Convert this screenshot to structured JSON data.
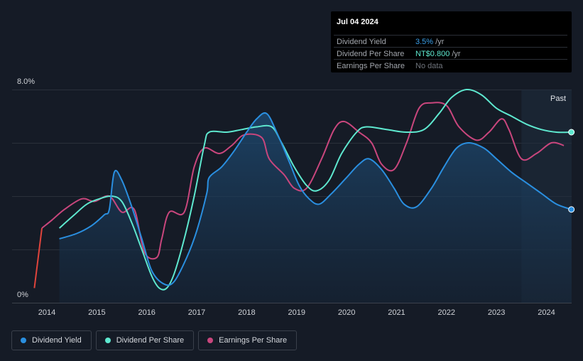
{
  "tooltip": {
    "date": "Jul 04 2024",
    "rows": [
      {
        "label": "Dividend Yield",
        "value": "3.5%",
        "unit": " /yr",
        "color": "#3a9fe8"
      },
      {
        "label": "Dividend Per Share",
        "value": "NT$0.800",
        "unit": " /yr",
        "color": "#5ee8cf"
      },
      {
        "label": "Earnings Per Share",
        "value": "No data",
        "unit": "",
        "color": "#6f747c"
      }
    ]
  },
  "legend": [
    {
      "label": "Dividend Yield",
      "color": "#2a8fe0"
    },
    {
      "label": "Dividend Per Share",
      "color": "#5ee8cf"
    },
    {
      "label": "Earnings Per Share",
      "color": "#c9467d"
    }
  ],
  "chart_data": {
    "type": "line",
    "y_top_label": "8.0%",
    "y_bottom_label": "0%",
    "ylim": [
      0,
      8
    ],
    "xlim": [
      2013.6,
      2024.5
    ],
    "x_ticks": [
      "2014",
      "2015",
      "2016",
      "2017",
      "2018",
      "2019",
      "2020",
      "2021",
      "2022",
      "2023",
      "2024"
    ],
    "past_label": "Past",
    "past_start": 2023.5,
    "series": [
      {
        "name": "Dividend Yield",
        "color": "#2a8fe0",
        "filled": true,
        "points": [
          [
            2014.25,
            2.4
          ],
          [
            2014.6,
            2.6
          ],
          [
            2014.9,
            2.9
          ],
          [
            2015.15,
            3.3
          ],
          [
            2015.25,
            3.5
          ],
          [
            2015.35,
            4.9
          ],
          [
            2015.5,
            4.6
          ],
          [
            2015.7,
            3.6
          ],
          [
            2015.9,
            2.4
          ],
          [
            2016.1,
            1.2
          ],
          [
            2016.35,
            0.7
          ],
          [
            2016.55,
            0.8
          ],
          [
            2016.8,
            1.7
          ],
          [
            2017.0,
            2.7
          ],
          [
            2017.2,
            4.1
          ],
          [
            2017.25,
            4.7
          ],
          [
            2017.5,
            5.1
          ],
          [
            2017.75,
            5.7
          ],
          [
            2018.0,
            6.4
          ],
          [
            2018.2,
            6.9
          ],
          [
            2018.4,
            7.1
          ],
          [
            2018.6,
            6.4
          ],
          [
            2018.85,
            5.3
          ],
          [
            2019.05,
            4.4
          ],
          [
            2019.25,
            3.9
          ],
          [
            2019.45,
            3.7
          ],
          [
            2019.7,
            4.1
          ],
          [
            2020.0,
            4.7
          ],
          [
            2020.25,
            5.2
          ],
          [
            2020.45,
            5.4
          ],
          [
            2020.7,
            5.0
          ],
          [
            2020.95,
            4.3
          ],
          [
            2021.15,
            3.7
          ],
          [
            2021.4,
            3.6
          ],
          [
            2021.7,
            4.3
          ],
          [
            2021.95,
            5.1
          ],
          [
            2022.2,
            5.8
          ],
          [
            2022.45,
            6.0
          ],
          [
            2022.75,
            5.8
          ],
          [
            2023.0,
            5.4
          ],
          [
            2023.3,
            4.9
          ],
          [
            2023.6,
            4.5
          ],
          [
            2023.9,
            4.1
          ],
          [
            2024.2,
            3.7
          ],
          [
            2024.5,
            3.5
          ]
        ]
      },
      {
        "name": "Dividend Per Share",
        "color": "#5ee8cf",
        "filled": false,
        "points": [
          [
            2014.25,
            2.8
          ],
          [
            2014.55,
            3.3
          ],
          [
            2014.8,
            3.7
          ],
          [
            2015.05,
            3.9
          ],
          [
            2015.3,
            4.0
          ],
          [
            2015.5,
            3.8
          ],
          [
            2015.7,
            3.0
          ],
          [
            2015.9,
            2.0
          ],
          [
            2016.1,
            1.0
          ],
          [
            2016.25,
            0.55
          ],
          [
            2016.4,
            0.55
          ],
          [
            2016.55,
            1.1
          ],
          [
            2016.75,
            2.4
          ],
          [
            2016.95,
            4.0
          ],
          [
            2017.15,
            5.9
          ],
          [
            2017.25,
            6.4
          ],
          [
            2017.6,
            6.4
          ],
          [
            2017.9,
            6.5
          ],
          [
            2018.2,
            6.6
          ],
          [
            2018.5,
            6.6
          ],
          [
            2018.7,
            6.0
          ],
          [
            2018.95,
            5.1
          ],
          [
            2019.2,
            4.4
          ],
          [
            2019.4,
            4.2
          ],
          [
            2019.65,
            4.6
          ],
          [
            2019.9,
            5.6
          ],
          [
            2020.2,
            6.4
          ],
          [
            2020.4,
            6.6
          ],
          [
            2020.8,
            6.5
          ],
          [
            2021.2,
            6.4
          ],
          [
            2021.55,
            6.5
          ],
          [
            2021.85,
            7.1
          ],
          [
            2022.1,
            7.7
          ],
          [
            2022.4,
            8.0
          ],
          [
            2022.7,
            7.8
          ],
          [
            2023.0,
            7.3
          ],
          [
            2023.3,
            7.0
          ],
          [
            2023.6,
            6.7
          ],
          [
            2023.9,
            6.5
          ],
          [
            2024.2,
            6.4
          ],
          [
            2024.5,
            6.4
          ]
        ]
      },
      {
        "name": "Earnings Per Share",
        "color": "#c9467d",
        "filled": false,
        "points": [
          [
            2013.75,
            0.55
          ],
          [
            2013.9,
            2.8
          ],
          [
            2014.1,
            3.1
          ],
          [
            2014.35,
            3.5
          ],
          [
            2014.7,
            3.9
          ],
          [
            2014.95,
            3.8
          ],
          [
            2015.25,
            4.0
          ],
          [
            2015.5,
            3.4
          ],
          [
            2015.75,
            3.5
          ],
          [
            2015.95,
            1.9
          ],
          [
            2016.2,
            1.7
          ],
          [
            2016.3,
            2.4
          ],
          [
            2016.45,
            3.4
          ],
          [
            2016.75,
            3.4
          ],
          [
            2016.95,
            5.1
          ],
          [
            2017.15,
            5.8
          ],
          [
            2017.45,
            5.6
          ],
          [
            2017.7,
            5.9
          ],
          [
            2017.95,
            6.3
          ],
          [
            2018.3,
            6.2
          ],
          [
            2018.45,
            5.4
          ],
          [
            2018.75,
            4.8
          ],
          [
            2018.95,
            4.3
          ],
          [
            2019.2,
            4.3
          ],
          [
            2019.5,
            5.4
          ],
          [
            2019.75,
            6.5
          ],
          [
            2019.95,
            6.8
          ],
          [
            2020.25,
            6.4
          ],
          [
            2020.5,
            6.0
          ],
          [
            2020.7,
            5.2
          ],
          [
            2020.95,
            5.0
          ],
          [
            2021.2,
            6.0
          ],
          [
            2021.45,
            7.3
          ],
          [
            2021.7,
            7.5
          ],
          [
            2022.0,
            7.4
          ],
          [
            2022.25,
            6.6
          ],
          [
            2022.6,
            6.1
          ],
          [
            2022.85,
            6.4
          ],
          [
            2023.1,
            6.9
          ],
          [
            2023.25,
            6.5
          ],
          [
            2023.5,
            5.4
          ],
          [
            2023.8,
            5.6
          ],
          [
            2024.1,
            6.0
          ],
          [
            2024.35,
            5.9
          ]
        ]
      }
    ],
    "end_markers": [
      "Dividend Yield",
      "Dividend Per Share"
    ]
  }
}
